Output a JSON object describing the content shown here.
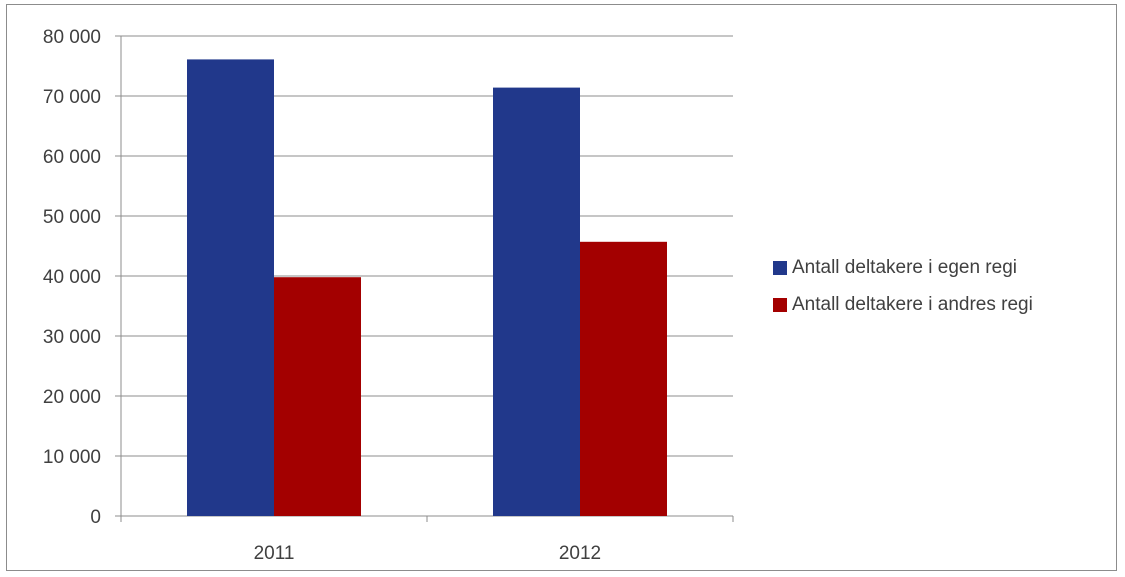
{
  "chart_data": {
    "type": "bar",
    "categories": [
      "2011",
      "2012"
    ],
    "series": [
      {
        "name": "Antall deltakere i egen regi",
        "values": [
          76100,
          71400
        ],
        "color": "#21388b"
      },
      {
        "name": "Antall deltakere i andres regi",
        "values": [
          39800,
          45700
        ],
        "color": "#a30000"
      }
    ],
    "ylim": [
      0,
      80000
    ],
    "yticks": [
      0,
      10000,
      20000,
      30000,
      40000,
      50000,
      60000,
      70000,
      80000
    ],
    "ytick_labels": [
      "0",
      "10 000",
      "20 000",
      "30 000",
      "40 000",
      "50 000",
      "60 000",
      "70 000",
      "80 000"
    ],
    "grid": true,
    "legend": "right",
    "title": "",
    "xlabel": "",
    "ylabel": ""
  }
}
